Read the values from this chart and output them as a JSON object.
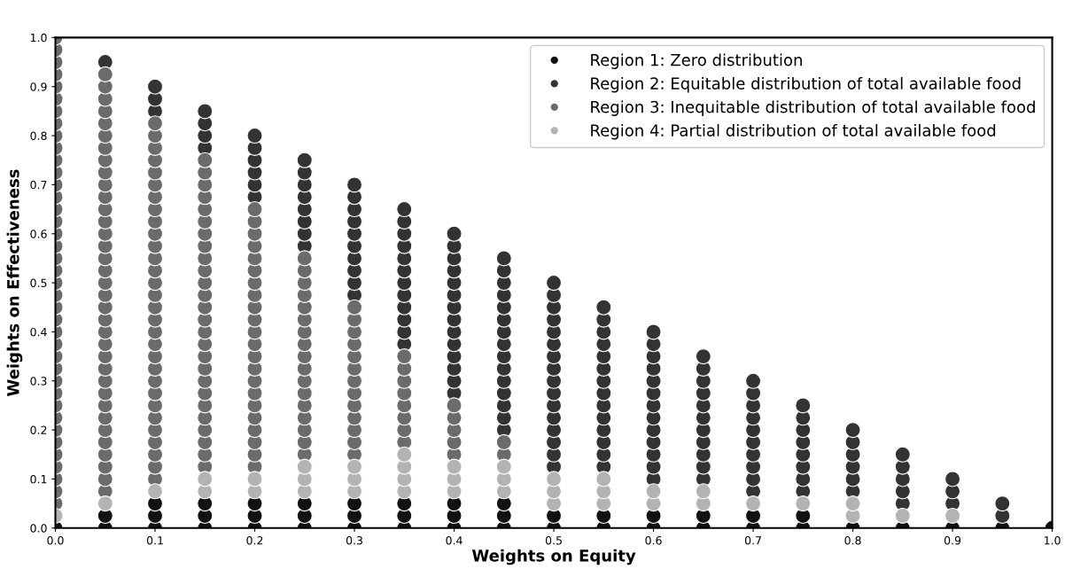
{
  "chart_data": {
    "type": "scatter",
    "xlabel": "Weights on Equity",
    "ylabel": "Weights on Effectiveness",
    "xlim": [
      0,
      1
    ],
    "ylim": [
      0,
      1
    ],
    "xticks": [
      {
        "value": 0,
        "label": "0.0"
      },
      0.1,
      0.2,
      0.3,
      0.4,
      0.5,
      0.6,
      0.7,
      0.8,
      0.9,
      {
        "value": 1,
        "label": "1.0"
      }
    ],
    "yticks": [
      {
        "value": 0,
        "label": "0.0"
      },
      0.1,
      0.2,
      0.3,
      0.4,
      0.5,
      0.6,
      0.7,
      0.8,
      0.9,
      {
        "value": 1,
        "label": "1.0"
      }
    ],
    "grid": false,
    "legend": "top right",
    "marker": "circle",
    "series": [
      {
        "name": "Region 1: Zero distribution",
        "color": "#111111",
        "x": [
          0,
          0.05,
          0.05,
          0.1,
          0.1,
          0.1,
          0.15,
          0.15,
          0.15,
          0.2,
          0.2,
          0.2,
          0.25,
          0.25,
          0.25,
          0.3,
          0.3,
          0.3,
          0.35,
          0.35,
          0.35,
          0.4,
          0.4,
          0.4,
          0.45,
          0.45,
          0.45,
          0.5,
          0.5,
          0.55,
          0.55,
          0.6,
          0.6,
          0.65,
          0.65,
          0.7,
          0.7,
          0.75,
          0.75,
          0.8,
          0.85,
          0.9,
          0.95,
          1.0
        ],
        "values": [
          0,
          0,
          0.025,
          0,
          0.025,
          0.05,
          0,
          0.025,
          0.05,
          0,
          0.025,
          0.05,
          0,
          0.025,
          0.05,
          0,
          0.025,
          0.05,
          0,
          0.025,
          0.05,
          0,
          0.025,
          0.05,
          0,
          0.025,
          0.05,
          0,
          0.025,
          0,
          0.025,
          0,
          0.025,
          0,
          0.025,
          0,
          0.025,
          0,
          0.025,
          0,
          0,
          0,
          0,
          0
        ]
      },
      {
        "name": "Region 2: Equitable distribution of total available food",
        "color": "#333333",
        "x": [
          0.05,
          0.1,
          0.1,
          0.1,
          0.15,
          0.15,
          0.15,
          0.15,
          0.2,
          0.2,
          0.2,
          0.2,
          0.2,
          0.2,
          0.25,
          0.25,
          0.25,
          0.25,
          0.25,
          0.25,
          0.25,
          0.25,
          0.3,
          0.3,
          0.3,
          0.3,
          0.3,
          0.3,
          0.3,
          0.3,
          0.3,
          0.3,
          0.35,
          0.35,
          0.35,
          0.35,
          0.35,
          0.35,
          0.35,
          0.35,
          0.35,
          0.35,
          0.35,
          0.35,
          0.4,
          0.4,
          0.4,
          0.4,
          0.4,
          0.4,
          0.4,
          0.4,
          0.4,
          0.4,
          0.4,
          0.4,
          0.4,
          0.4,
          0.45,
          0.45,
          0.45,
          0.45,
          0.45,
          0.45,
          0.45,
          0.45,
          0.45,
          0.45,
          0.45,
          0.45,
          0.45,
          0.45,
          0.45,
          0.5,
          0.5,
          0.5,
          0.5,
          0.5,
          0.5,
          0.5,
          0.5,
          0.5,
          0.5,
          0.5,
          0.5,
          0.5,
          0.5,
          0.5,
          0.5,
          0.55,
          0.55,
          0.55,
          0.55,
          0.55,
          0.55,
          0.55,
          0.55,
          0.55,
          0.55,
          0.55,
          0.55,
          0.55,
          0.55,
          0.6,
          0.6,
          0.6,
          0.6,
          0.6,
          0.6,
          0.6,
          0.6,
          0.6,
          0.6,
          0.6,
          0.6,
          0.6,
          0.65,
          0.65,
          0.65,
          0.65,
          0.65,
          0.65,
          0.65,
          0.65,
          0.65,
          0.65,
          0.65,
          0.7,
          0.7,
          0.7,
          0.7,
          0.7,
          0.7,
          0.7,
          0.7,
          0.7,
          0.7,
          0.75,
          0.75,
          0.75,
          0.75,
          0.75,
          0.75,
          0.75,
          0.75,
          0.8,
          0.8,
          0.8,
          0.8,
          0.8,
          0.8,
          0.85,
          0.85,
          0.85,
          0.85,
          0.85,
          0.9,
          0.9,
          0.9,
          0.95,
          0.95
        ],
        "values": [
          0.95,
          0.85,
          0.875,
          0.9,
          0.775,
          0.8,
          0.825,
          0.85,
          0.675,
          0.7,
          0.725,
          0.75,
          0.775,
          0.8,
          0.575,
          0.6,
          0.625,
          0.65,
          0.675,
          0.7,
          0.725,
          0.75,
          0.475,
          0.5,
          0.525,
          0.55,
          0.575,
          0.6,
          0.625,
          0.65,
          0.675,
          0.7,
          0.375,
          0.4,
          0.425,
          0.45,
          0.475,
          0.5,
          0.525,
          0.55,
          0.575,
          0.6,
          0.625,
          0.65,
          0.275,
          0.3,
          0.325,
          0.35,
          0.375,
          0.4,
          0.425,
          0.45,
          0.475,
          0.5,
          0.525,
          0.55,
          0.575,
          0.6,
          0.2,
          0.225,
          0.25,
          0.275,
          0.3,
          0.325,
          0.35,
          0.375,
          0.4,
          0.425,
          0.45,
          0.475,
          0.5,
          0.525,
          0.55,
          0.125,
          0.15,
          0.175,
          0.2,
          0.225,
          0.25,
          0.275,
          0.3,
          0.325,
          0.35,
          0.375,
          0.4,
          0.425,
          0.45,
          0.475,
          0.5,
          0.125,
          0.15,
          0.175,
          0.2,
          0.225,
          0.25,
          0.275,
          0.3,
          0.325,
          0.35,
          0.375,
          0.4,
          0.425,
          0.45,
          0.1,
          0.125,
          0.15,
          0.175,
          0.2,
          0.225,
          0.25,
          0.275,
          0.3,
          0.325,
          0.35,
          0.375,
          0.4,
          0.1,
          0.125,
          0.15,
          0.175,
          0.2,
          0.225,
          0.25,
          0.275,
          0.3,
          0.325,
          0.35,
          0.075,
          0.1,
          0.125,
          0.15,
          0.175,
          0.2,
          0.225,
          0.25,
          0.275,
          0.3,
          0.075,
          0.1,
          0.125,
          0.15,
          0.175,
          0.2,
          0.225,
          0.25,
          0.075,
          0.1,
          0.125,
          0.15,
          0.175,
          0.2,
          0.05,
          0.075,
          0.1,
          0.125,
          0.15,
          0.05,
          0.075,
          0.1,
          0.025,
          0.05
        ]
      },
      {
        "name": "Region 3: Inequitable distribution of total available food",
        "color": "#6b6b6b",
        "x": [
          0,
          0,
          0,
          0,
          0,
          0,
          0,
          0,
          0,
          0,
          0,
          0,
          0,
          0,
          0,
          0,
          0,
          0,
          0,
          0,
          0,
          0,
          0,
          0,
          0,
          0,
          0,
          0,
          0,
          0,
          0,
          0,
          0,
          0,
          0,
          0,
          0,
          0,
          0,
          0.05,
          0.05,
          0.05,
          0.05,
          0.05,
          0.05,
          0.05,
          0.05,
          0.05,
          0.05,
          0.05,
          0.05,
          0.05,
          0.05,
          0.05,
          0.05,
          0.05,
          0.05,
          0.05,
          0.05,
          0.05,
          0.05,
          0.05,
          0.05,
          0.05,
          0.05,
          0.05,
          0.05,
          0.05,
          0.05,
          0.05,
          0.05,
          0.05,
          0.05,
          0.05,
          0.1,
          0.1,
          0.1,
          0.1,
          0.1,
          0.1,
          0.1,
          0.1,
          0.1,
          0.1,
          0.1,
          0.1,
          0.1,
          0.1,
          0.1,
          0.1,
          0.1,
          0.1,
          0.1,
          0.1,
          0.1,
          0.1,
          0.1,
          0.1,
          0.1,
          0.1,
          0.1,
          0.1,
          0.1,
          0.1,
          0.15,
          0.15,
          0.15,
          0.15,
          0.15,
          0.15,
          0.15,
          0.15,
          0.15,
          0.15,
          0.15,
          0.15,
          0.15,
          0.15,
          0.15,
          0.15,
          0.15,
          0.15,
          0.15,
          0.15,
          0.15,
          0.15,
          0.15,
          0.15,
          0.15,
          0.15,
          0.2,
          0.2,
          0.2,
          0.2,
          0.2,
          0.2,
          0.2,
          0.2,
          0.2,
          0.2,
          0.2,
          0.2,
          0.2,
          0.2,
          0.2,
          0.2,
          0.2,
          0.2,
          0.2,
          0.2,
          0.2,
          0.2,
          0.25,
          0.25,
          0.25,
          0.25,
          0.25,
          0.25,
          0.25,
          0.25,
          0.25,
          0.25,
          0.25,
          0.25,
          0.25,
          0.25,
          0.25,
          0.25,
          0.25,
          0.3,
          0.3,
          0.3,
          0.3,
          0.3,
          0.3,
          0.3,
          0.3,
          0.3,
          0.3,
          0.3,
          0.3,
          0.3,
          0.35,
          0.35,
          0.35,
          0.35,
          0.35,
          0.35,
          0.35,
          0.35,
          0.4,
          0.4,
          0.4,
          0.4,
          0.4,
          0.45,
          0.45
        ],
        "values": [
          0.05,
          0.075,
          0.1,
          0.125,
          0.15,
          0.175,
          0.2,
          0.225,
          0.25,
          0.275,
          0.3,
          0.325,
          0.35,
          0.375,
          0.4,
          0.425,
          0.45,
          0.475,
          0.5,
          0.525,
          0.55,
          0.575,
          0.6,
          0.625,
          0.65,
          0.675,
          0.7,
          0.725,
          0.75,
          0.775,
          0.8,
          0.825,
          0.85,
          0.875,
          0.9,
          0.925,
          0.95,
          0.975,
          1.0,
          0.075,
          0.1,
          0.125,
          0.15,
          0.175,
          0.2,
          0.225,
          0.25,
          0.275,
          0.3,
          0.325,
          0.35,
          0.375,
          0.4,
          0.425,
          0.45,
          0.475,
          0.5,
          0.525,
          0.55,
          0.575,
          0.6,
          0.625,
          0.65,
          0.675,
          0.7,
          0.725,
          0.75,
          0.775,
          0.8,
          0.825,
          0.85,
          0.875,
          0.9,
          0.925,
          0.1,
          0.125,
          0.15,
          0.175,
          0.2,
          0.225,
          0.25,
          0.275,
          0.3,
          0.325,
          0.35,
          0.375,
          0.4,
          0.425,
          0.45,
          0.475,
          0.5,
          0.525,
          0.55,
          0.575,
          0.6,
          0.625,
          0.65,
          0.675,
          0.7,
          0.725,
          0.75,
          0.775,
          0.8,
          0.825,
          0.125,
          0.15,
          0.175,
          0.2,
          0.225,
          0.25,
          0.275,
          0.3,
          0.325,
          0.35,
          0.375,
          0.4,
          0.425,
          0.45,
          0.475,
          0.5,
          0.525,
          0.55,
          0.575,
          0.6,
          0.625,
          0.65,
          0.675,
          0.7,
          0.725,
          0.75,
          0.125,
          0.15,
          0.175,
          0.2,
          0.225,
          0.25,
          0.275,
          0.3,
          0.325,
          0.35,
          0.375,
          0.4,
          0.425,
          0.45,
          0.475,
          0.5,
          0.525,
          0.55,
          0.575,
          0.6,
          0.625,
          0.65,
          0.15,
          0.175,
          0.2,
          0.225,
          0.25,
          0.275,
          0.3,
          0.325,
          0.35,
          0.375,
          0.4,
          0.425,
          0.45,
          0.475,
          0.5,
          0.525,
          0.55,
          0.15,
          0.175,
          0.2,
          0.225,
          0.25,
          0.275,
          0.3,
          0.325,
          0.35,
          0.375,
          0.4,
          0.425,
          0.45,
          0.175,
          0.2,
          0.225,
          0.25,
          0.275,
          0.3,
          0.325,
          0.35,
          0.15,
          0.175,
          0.2,
          0.225,
          0.25,
          0.15,
          0.175
        ]
      },
      {
        "name": "Region 4: Partial distribution of total available food",
        "color": "#b3b3b3",
        "x": [
          0,
          0.05,
          0.1,
          0.15,
          0.15,
          0.2,
          0.2,
          0.25,
          0.25,
          0.25,
          0.3,
          0.3,
          0.3,
          0.35,
          0.35,
          0.35,
          0.35,
          0.4,
          0.4,
          0.4,
          0.45,
          0.45,
          0.45,
          0.5,
          0.5,
          0.5,
          0.55,
          0.55,
          0.55,
          0.6,
          0.6,
          0.65,
          0.65,
          0.7,
          0.75,
          0.8,
          0.8,
          0.85,
          0.9
        ],
        "values": [
          0.025,
          0.05,
          0.075,
          0.075,
          0.1,
          0.075,
          0.1,
          0.075,
          0.1,
          0.125,
          0.075,
          0.1,
          0.125,
          0.075,
          0.1,
          0.125,
          0.15,
          0.075,
          0.1,
          0.125,
          0.075,
          0.1,
          0.125,
          0.05,
          0.075,
          0.1,
          0.05,
          0.075,
          0.1,
          0.05,
          0.075,
          0.05,
          0.075,
          0.05,
          0.05,
          0.025,
          0.05,
          0.025,
          0.025
        ]
      }
    ]
  }
}
